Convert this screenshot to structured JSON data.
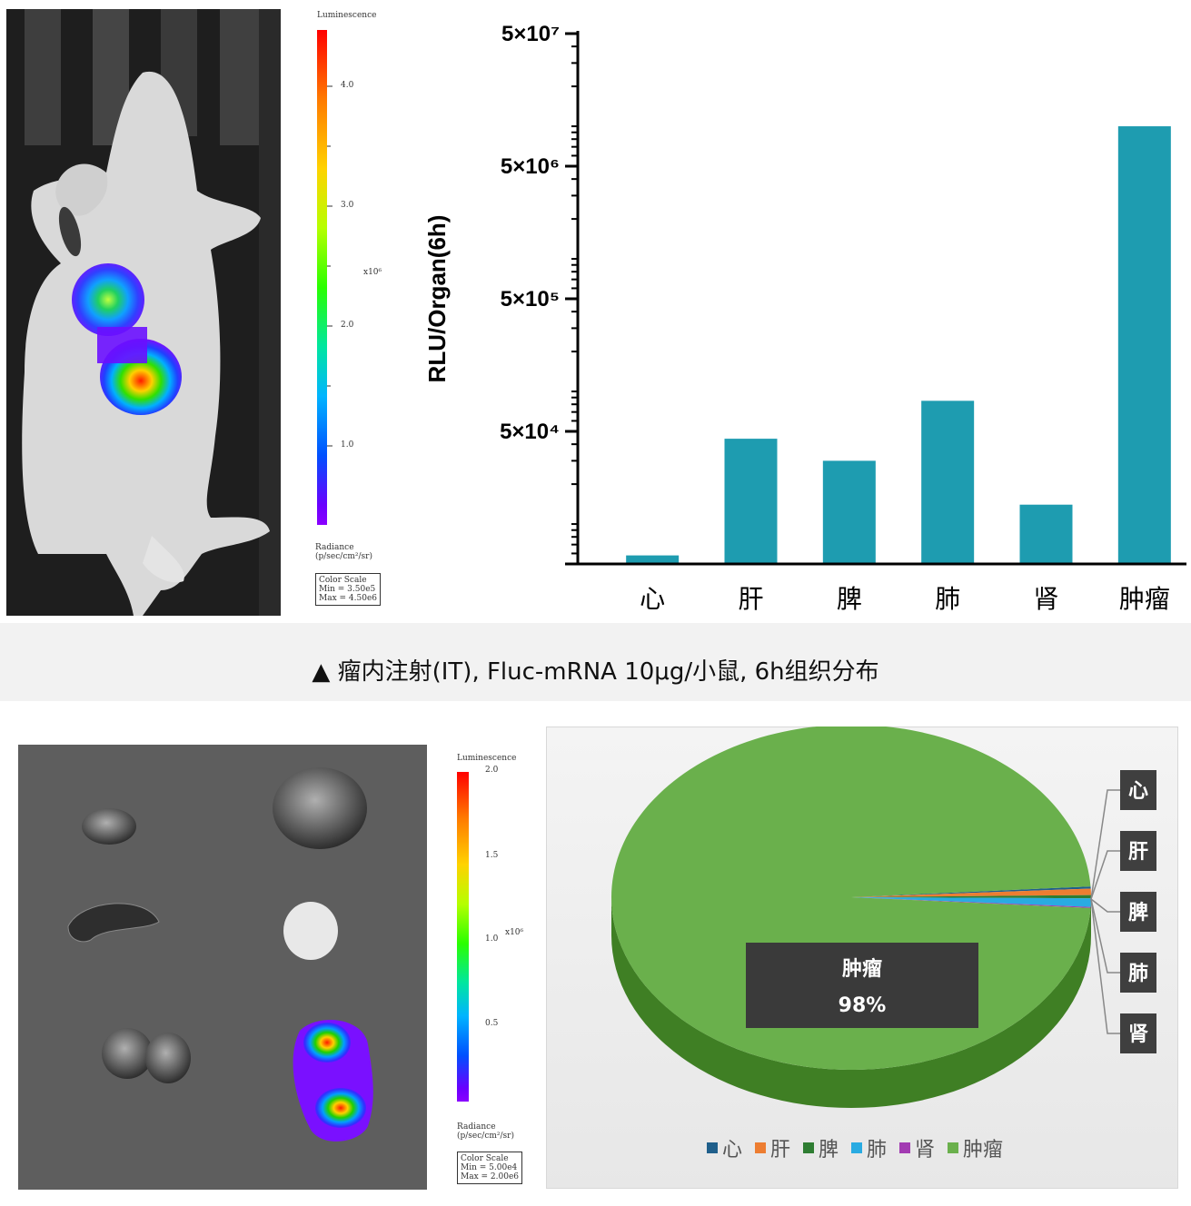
{
  "top_figure": {
    "mouse_image": {
      "colorbar": {
        "title": "Luminescence",
        "ticks": [
          "4.0",
          "3.0",
          "2.0",
          "1.0"
        ],
        "exponent": "x10⁶",
        "unit_label": "Radiance",
        "unit": "(p/sec/cm²/sr)",
        "color_scale": {
          "label": "Color Scale",
          "min": "Min = 3.50e5",
          "max": "Max = 4.50e6"
        }
      }
    }
  },
  "chart_data": [
    {
      "type": "bar",
      "ylabel": "RLU/Organ(6h)",
      "yscale": "log",
      "ylim": [
        5000,
        50000000
      ],
      "yticks": [
        {
          "value": 50000,
          "label": "5×10⁴"
        },
        {
          "value": 500000,
          "label": "5×10⁵"
        },
        {
          "value": 5000000,
          "label": "5×10⁶"
        },
        {
          "value": 50000000,
          "label": "5×10⁷"
        }
      ],
      "categories": [
        "心",
        "肝",
        "脾",
        "肺",
        "肾",
        "肿瘤"
      ],
      "values": [
        5800,
        44000,
        30000,
        85000,
        14000,
        10000000
      ],
      "color": "#1e9cb0"
    },
    {
      "type": "pie",
      "labels": [
        "心",
        "肝",
        "脾",
        "肺",
        "肾",
        "肿瘤"
      ],
      "values": [
        0.2,
        0.6,
        0.3,
        0.8,
        0.1,
        98
      ],
      "colors": [
        "#1f5f8b",
        "#ed7d31",
        "#2e7d32",
        "#29abe2",
        "#a23ab2",
        "#6ab04c"
      ],
      "data_label": {
        "name": "肿瘤",
        "value": "98%"
      }
    }
  ],
  "caption": "▲ 瘤内注射(IT), Fluc-mRNA 10μg/小鼠, 6h组织分布",
  "bottom_figure": {
    "organ_image": {
      "colorbar": {
        "title": "Luminescence",
        "ticks": [
          "2.0",
          "1.5",
          "1.0",
          "0.5"
        ],
        "exponent": "x10⁶",
        "unit_label": "Radiance",
        "unit": "(p/sec/cm²/sr)",
        "color_scale": {
          "label": "Color Scale",
          "min": "Min = 5.00e4",
          "max": "Max = 2.00e6"
        }
      }
    }
  }
}
